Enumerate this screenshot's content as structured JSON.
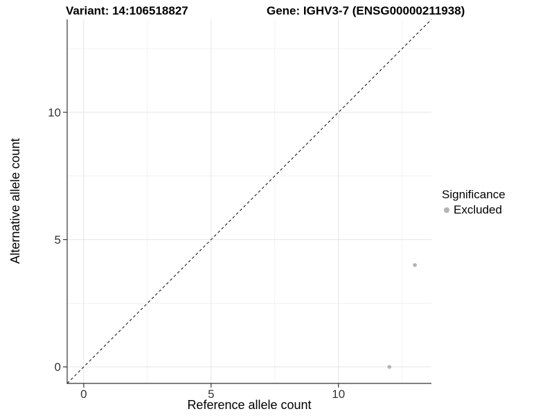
{
  "title": {
    "left": "Variant: 14:106518827",
    "right": "Gene: IGHV3-7 (ENSG00000211938)"
  },
  "axes": {
    "x_label": "Reference allele count",
    "y_label": "Alternative allele count"
  },
  "legend": {
    "title": "Significance",
    "items": [
      {
        "label": "Excluded",
        "color": "#b4b4b4"
      }
    ]
  },
  "chart_data": {
    "type": "scatter",
    "title": "Variant: 14:106518827 — Gene: IGHV3-7 (ENSG00000211938)",
    "xlabel": "Reference allele count",
    "ylabel": "Alternative allele count",
    "xlim": [
      -0.65,
      13.65
    ],
    "ylim": [
      -0.65,
      13.65
    ],
    "x_major_ticks": [
      0,
      5,
      10
    ],
    "y_major_ticks": [
      0,
      5,
      10
    ],
    "x_minor_ticks": [
      2.5,
      7.5,
      12.5
    ],
    "y_minor_ticks": [
      2.5,
      7.5,
      12.5
    ],
    "grid": true,
    "legend_position": "right",
    "reference_line": {
      "type": "identity",
      "slope": 1,
      "intercept": 0,
      "style": "dashed",
      "color": "#1a1a1a"
    },
    "series": [
      {
        "name": "Excluded",
        "color": "#b4b4b4",
        "points": [
          {
            "x": 12,
            "y": 0
          },
          {
            "x": 13,
            "y": 4
          }
        ]
      }
    ],
    "colors": {
      "grid_major": "#e4e4e4",
      "grid_minor": "#f1f1f1",
      "axis": "#333333"
    }
  }
}
